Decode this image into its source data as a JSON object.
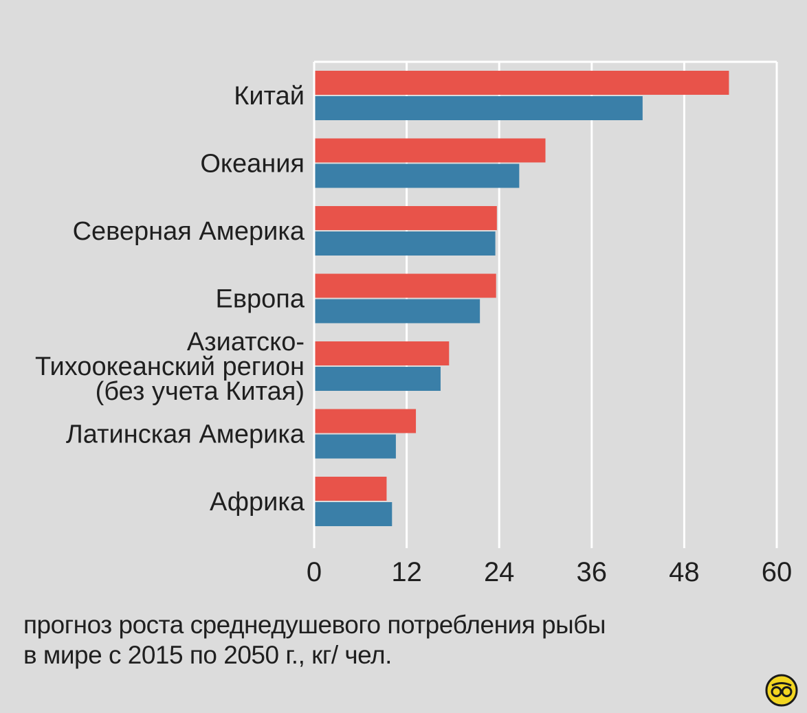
{
  "chart_data": {
    "type": "bar",
    "orientation": "horizontal",
    "categories": [
      [
        "Китай"
      ],
      [
        "Океания"
      ],
      [
        "Северная Америка"
      ],
      [
        "Европа"
      ],
      [
        "Азиатско-",
        "Тихоокеанский регион",
        "(без учета Китая)"
      ],
      [
        "Латинская Америка"
      ],
      [
        "Африка"
      ]
    ],
    "series": [
      {
        "values": [
          53.8,
          30.0,
          23.7,
          23.6,
          17.5,
          13.2,
          9.4
        ],
        "color": "#e8534a"
      },
      {
        "values": [
          42.6,
          26.6,
          23.5,
          21.5,
          16.4,
          10.6,
          10.1
        ],
        "color": "#3a7fa8"
      }
    ],
    "xlim": [
      0,
      60
    ],
    "xticks": [
      "0",
      "12",
      "24",
      "36",
      "48",
      "60"
    ],
    "grid": true,
    "caption": [
      "прогноз роста среднедушевого потребления рыбы",
      "в мире с 2015 по 2050 г., кг/ чел."
    ]
  },
  "logo": {
    "icon": "glasses-logo-icon",
    "fill": "#f2d520"
  }
}
